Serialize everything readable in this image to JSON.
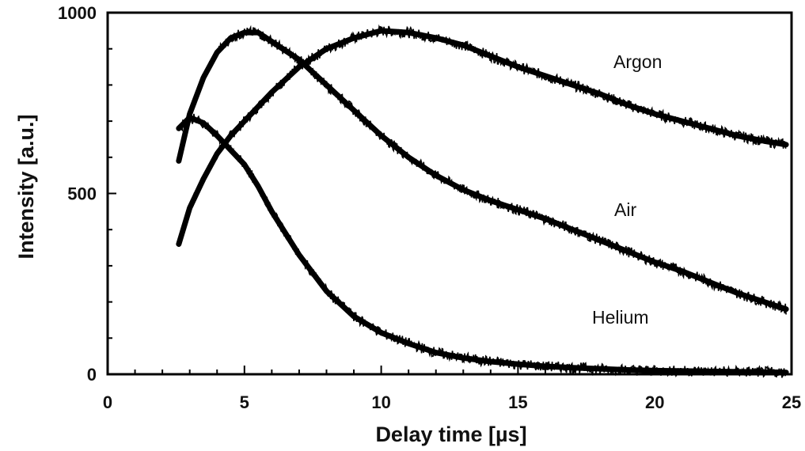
{
  "chart_data": {
    "type": "line",
    "xlabel": "Delay time [µs]",
    "ylabel": "Intensity [a.u.]",
    "xlim": [
      0,
      25
    ],
    "ylim": [
      0,
      1000
    ],
    "x_ticks": [
      "0",
      "5",
      "10",
      "15",
      "20",
      "25"
    ],
    "y_ticks": [
      "0",
      "500",
      "1000"
    ],
    "grid": false,
    "legend": "none",
    "line_color": "#000000",
    "series": [
      {
        "name": "Argon",
        "x": [
          2.6,
          3.0,
          3.5,
          4.0,
          4.5,
          5.0,
          6.0,
          7.0,
          8.0,
          9.0,
          10.0,
          11.0,
          12.0,
          13.0,
          14.0,
          15.0,
          16.0,
          17.0,
          18.0,
          19.0,
          20.0,
          21.0,
          22.0,
          23.0,
          24.0,
          24.8
        ],
        "y": [
          360,
          460,
          540,
          610,
          660,
          700,
          780,
          850,
          900,
          930,
          950,
          945,
          930,
          910,
          880,
          850,
          825,
          800,
          775,
          745,
          720,
          700,
          680,
          660,
          645,
          635
        ]
      },
      {
        "name": "Air",
        "x": [
          2.6,
          3.0,
          3.5,
          4.0,
          4.5,
          5.0,
          5.5,
          6.0,
          7.0,
          8.0,
          9.0,
          10.0,
          11.0,
          12.0,
          13.0,
          14.0,
          15.0,
          16.0,
          17.0,
          18.0,
          19.0,
          20.0,
          21.0,
          22.0,
          23.0,
          24.0,
          24.8
        ],
        "y": [
          590,
          720,
          820,
          890,
          930,
          945,
          945,
          920,
          870,
          800,
          730,
          660,
          600,
          550,
          510,
          480,
          455,
          430,
          400,
          370,
          340,
          310,
          285,
          255,
          225,
          200,
          180
        ]
      },
      {
        "name": "Helium",
        "x": [
          2.6,
          3.0,
          3.5,
          4.0,
          4.5,
          5.0,
          5.5,
          6.0,
          7.0,
          8.0,
          9.0,
          10.0,
          11.0,
          12.0,
          13.0,
          14.0,
          15.0,
          16.0,
          17.0,
          18.0,
          19.0,
          20.0,
          22.0,
          24.0,
          24.8
        ],
        "y": [
          680,
          710,
          695,
          660,
          620,
          580,
          520,
          450,
          330,
          230,
          160,
          115,
          85,
          60,
          45,
          35,
          28,
          22,
          18,
          15,
          12,
          10,
          8,
          6,
          5
        ]
      }
    ]
  }
}
